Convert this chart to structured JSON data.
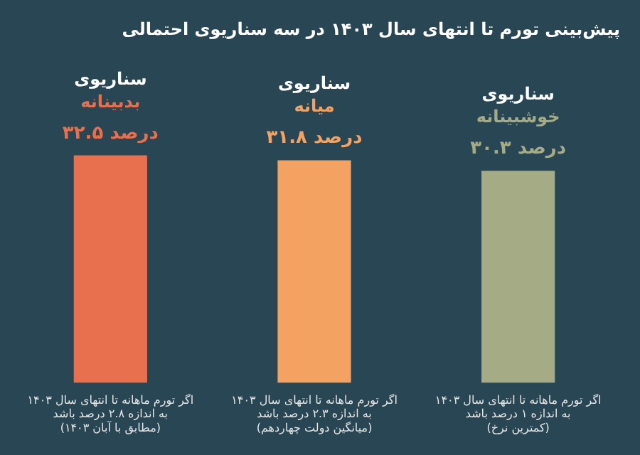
{
  "chart_data": {
    "type": "bar",
    "title": "پیش‌بینی تورم تا انتهای سال ۱۴۰۳ در سه سناریوی احتمالی",
    "categories": [
      "اگر تورم ماهانه تا انتهای سال ۱۴۰۳\nبه اندازه ۲.۸ درصد باشد\n(مطابق با آبان ۱۴۰۳)",
      "اگر تورم ماهانه تا انتهای سال ۱۴۰۳\nبه اندازه ۲.۳ درصد باشد\n(میانگین دولت چهاردهم)",
      "اگر تورم ماهانه تا انتهای سال ۱۴۰۳\nبه اندازه ۱ درصد باشد\n(کمترین نرخ)"
    ],
    "values": [
      32.5,
      31.8,
      30.3
    ],
    "colors": [
      "#e8704f",
      "#f3a261",
      "#a5ab85"
    ],
    "value_labels": [
      "۳۲.۵ درصد",
      "۳۱.۸ درصد",
      "۳۰.۳ درصد"
    ],
    "annotations": [
      {
        "text": "سناریوی\nبدبینانه",
        "x": "اگر تورم ماهانه تا انتهای سال ۱۴۰۳\nبه اندازه ۲.۸ درصد باشد\n(مطابق با آبان ۱۴۰۳)",
        "y": 32.5
      },
      {
        "text": "سناریوی\nمیانه",
        "x": "اگر تورم ماهانه تا انتهای سال ۱۴۰۳\nبه اندازه ۲.۳ درصد باشد\n(میانگین دولت چهاردهم)",
        "y": 31.8
      },
      {
        "text": "سناریوی\nخوشبینانه",
        "x": "اگر تورم ماهانه تا انتهای سال ۱۴۰۳\nبه اندازه ۱ درصد باشد\n(کمترین نرخ)",
        "y": 30.3
      }
    ],
    "grid": false,
    "legend": false
  }
}
